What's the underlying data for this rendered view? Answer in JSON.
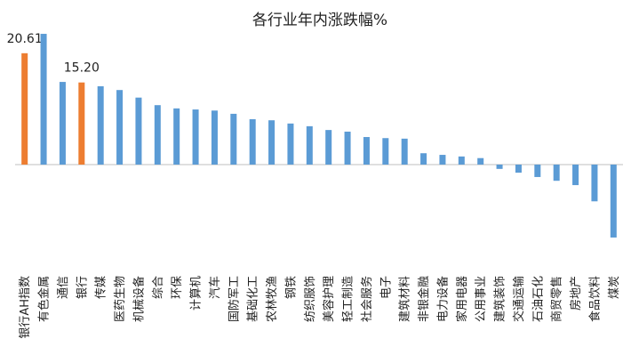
{
  "chart_data": {
    "type": "bar",
    "title": "各行业年内涨跌幅%",
    "categories": [
      "银行AH指数",
      "有色金属",
      "通信",
      "银行",
      "传媒",
      "医药生物",
      "机械设备",
      "综合",
      "环保",
      "计算机",
      "汽车",
      "国防军工",
      "基础化工",
      "农林牧渔",
      "钢铁",
      "纺织服饰",
      "美容护理",
      "轻工制造",
      "社会服务",
      "电子",
      "建筑材料",
      "非银金融",
      "电力设备",
      "家用电器",
      "公用事业",
      "建筑装饰",
      "交通运输",
      "石油石化",
      "商贸零售",
      "房地产",
      "食品饮料",
      "煤炭"
    ],
    "values": [
      20.61,
      24.2,
      15.3,
      15.2,
      14.5,
      13.8,
      12.4,
      11.0,
      10.4,
      10.2,
      10.0,
      9.4,
      8.4,
      8.2,
      7.6,
      7.1,
      6.4,
      6.1,
      5.1,
      4.9,
      4.8,
      2.1,
      1.8,
      1.5,
      1.2,
      -0.8,
      -1.5,
      -2.3,
      -3.0,
      -3.8,
      -6.8,
      -13.5
    ],
    "value_labels": [
      "20.61",
      null,
      null,
      "15.20",
      null,
      null,
      null,
      null,
      null,
      null,
      null,
      null,
      null,
      null,
      null,
      null,
      null,
      null,
      null,
      null,
      null,
      null,
      null,
      null,
      null,
      null,
      null,
      null,
      null,
      null,
      null,
      null
    ],
    "colors": [
      "#ed7d31",
      "#5b9bd5",
      "#5b9bd5",
      "#ed7d31",
      "#5b9bd5",
      "#5b9bd5",
      "#5b9bd5",
      "#5b9bd5",
      "#5b9bd5",
      "#5b9bd5",
      "#5b9bd5",
      "#5b9bd5",
      "#5b9bd5",
      "#5b9bd5",
      "#5b9bd5",
      "#5b9bd5",
      "#5b9bd5",
      "#5b9bd5",
      "#5b9bd5",
      "#5b9bd5",
      "#5b9bd5",
      "#5b9bd5",
      "#5b9bd5",
      "#5b9bd5",
      "#5b9bd5",
      "#5b9bd5",
      "#5b9bd5",
      "#5b9bd5",
      "#5b9bd5",
      "#5b9bd5",
      "#5b9bd5",
      "#5b9bd5"
    ],
    "ylim": [
      -14,
      24.7
    ]
  }
}
